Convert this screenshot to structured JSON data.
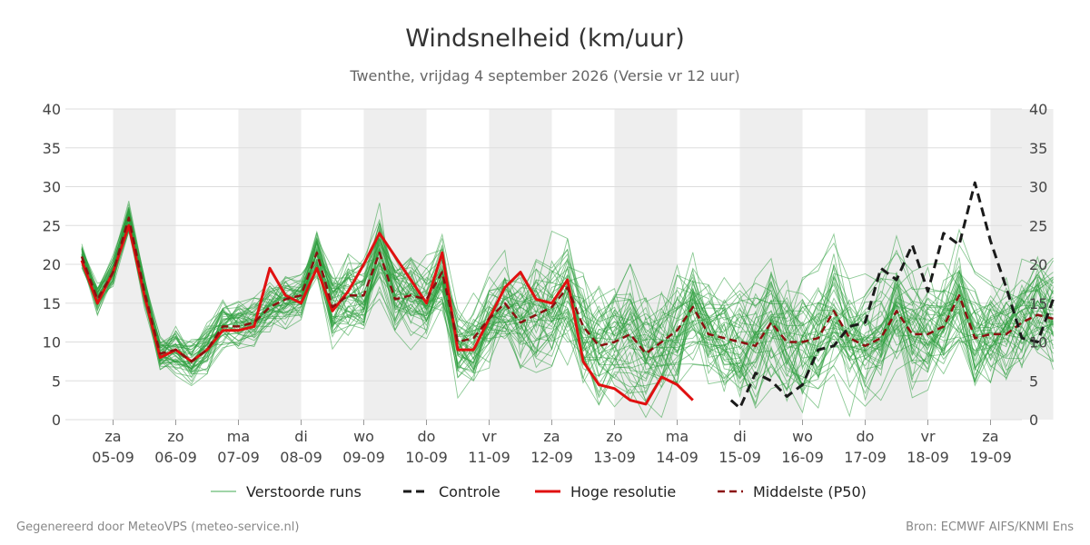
{
  "chart_data": {
    "type": "line",
    "title": "Windsnelheid (km/uur)",
    "subtitle": "Twenthe, vrijdag  4 september 2026 (Versie vr 12 uur)",
    "ylim": [
      0,
      40
    ],
    "yticks": [
      0,
      5,
      10,
      15,
      20,
      25,
      30,
      35,
      40
    ],
    "xlim": [
      0,
      15.5
    ],
    "grid": true,
    "legend_position": "bottom",
    "x_ticks": [
      {
        "x": 0.5,
        "day": "za",
        "date": "05-09"
      },
      {
        "x": 1.5,
        "day": "zo",
        "date": "06-09"
      },
      {
        "x": 2.5,
        "day": "ma",
        "date": "07-09"
      },
      {
        "x": 3.5,
        "day": "di",
        "date": "08-09"
      },
      {
        "x": 4.5,
        "day": "wo",
        "date": "09-09"
      },
      {
        "x": 5.5,
        "day": "do",
        "date": "10-09"
      },
      {
        "x": 6.5,
        "day": "vr",
        "date": "11-09"
      },
      {
        "x": 7.5,
        "day": "za",
        "date": "12-09"
      },
      {
        "x": 8.5,
        "day": "zo",
        "date": "13-09"
      },
      {
        "x": 9.5,
        "day": "ma",
        "date": "14-09"
      },
      {
        "x": 10.5,
        "day": "di",
        "date": "15-09"
      },
      {
        "x": 11.5,
        "day": "wo",
        "date": "16-09"
      },
      {
        "x": 12.5,
        "day": "do",
        "date": "17-09"
      },
      {
        "x": 13.5,
        "day": "vr",
        "date": "18-09"
      },
      {
        "x": 14.5,
        "day": "za",
        "date": "19-09"
      }
    ],
    "weekend_bands": [
      [
        0.5,
        1.5
      ],
      [
        2.5,
        3.5
      ],
      [
        4.5,
        5.5
      ],
      [
        6.5,
        7.5
      ],
      [
        8.5,
        9.5
      ],
      [
        10.5,
        11.5
      ],
      [
        12.5,
        13.5
      ],
      [
        14.5,
        15.5
      ]
    ],
    "colors": {
      "ensemble": "#2e9e3e",
      "control": "#1a1a1a",
      "high_res": "#e01010",
      "median": "#8b1010",
      "band": "#eeeeee",
      "grid": "#dddddd"
    },
    "ensemble_members": 50,
    "control": {
      "x": [
        10.36,
        10.5,
        10.75,
        11.0,
        11.25,
        11.5,
        11.75,
        12.0,
        12.25,
        12.5,
        12.75,
        13.0,
        13.25,
        13.5,
        13.75,
        14.0,
        14.25,
        14.5,
        14.75,
        15.0,
        15.25,
        15.5
      ],
      "values": [
        2.5,
        1.5,
        6.0,
        5.0,
        3.0,
        4.5,
        9.0,
        9.5,
        12.0,
        12.5,
        19.5,
        18.0,
        22.5,
        16.5,
        24.0,
        22.5,
        30.5,
        23.0,
        17.0,
        10.5,
        10.0,
        15.5
      ]
    },
    "high_res": {
      "x": [
        0.0,
        0.25,
        0.5,
        0.75,
        1.0,
        1.25,
        1.5,
        1.75,
        2.0,
        2.25,
        2.5,
        2.75,
        3.0,
        3.25,
        3.5,
        3.75,
        4.0,
        4.25,
        4.5,
        4.75,
        5.0,
        5.25,
        5.5,
        5.75,
        6.0,
        6.25,
        6.5,
        6.75,
        7.0,
        7.25,
        7.5,
        7.75,
        8.0,
        8.25,
        8.5,
        8.75,
        9.0,
        9.25,
        9.5,
        9.75,
        10.0,
        10.25
      ],
      "values": [
        20.5,
        15.0,
        19.0,
        25.0,
        16.0,
        8.0,
        9.0,
        7.5,
        9.0,
        11.5,
        11.5,
        12.0,
        19.5,
        16.0,
        15.0,
        19.5,
        14.0,
        16.5,
        20.0,
        24.0,
        21.0,
        18.0,
        15.0,
        21.5,
        9.0,
        9.0,
        13.0,
        17.0,
        19.0,
        15.5,
        15.0,
        18.0,
        7.5,
        4.5,
        4.0,
        2.5,
        2.0,
        5.5,
        4.5,
        2.5,
        null,
        null
      ]
    },
    "median": {
      "x": [
        0.0,
        0.25,
        0.5,
        0.75,
        1.0,
        1.25,
        1.5,
        1.75,
        2.0,
        2.25,
        2.5,
        2.75,
        3.0,
        3.25,
        3.5,
        3.75,
        4.0,
        4.25,
        4.5,
        4.75,
        5.0,
        5.25,
        5.5,
        5.75,
        6.0,
        6.25,
        6.5,
        6.75,
        7.0,
        7.25,
        7.5,
        7.75,
        8.0,
        8.25,
        8.5,
        8.75,
        9.0,
        9.25,
        9.5,
        9.75,
        10.0,
        10.25,
        10.5,
        10.75,
        11.0,
        11.25,
        11.5,
        11.75,
        12.0,
        12.25,
        12.5,
        12.75,
        13.0,
        13.25,
        13.5,
        13.75,
        14.0,
        14.25,
        14.5,
        14.75,
        15.0,
        15.25,
        15.5
      ],
      "values": [
        21.0,
        15.5,
        19.0,
        26.0,
        16.5,
        8.5,
        9.0,
        7.5,
        9.0,
        12.0,
        12.0,
        12.5,
        14.5,
        15.5,
        16.0,
        21.5,
        14.5,
        16.0,
        16.0,
        21.5,
        15.5,
        16.0,
        15.5,
        19.0,
        10.0,
        10.5,
        13.0,
        15.0,
        12.5,
        13.5,
        14.5,
        17.0,
        12.0,
        9.5,
        10.0,
        11.0,
        8.5,
        10.0,
        11.5,
        14.5,
        11.0,
        10.5,
        10.0,
        9.5,
        12.5,
        10.0,
        10.0,
        10.5,
        14.0,
        10.5,
        9.5,
        10.5,
        14.0,
        11.0,
        11.0,
        12.0,
        16.0,
        10.5,
        11.0,
        11.0,
        12.5,
        13.5,
        13.0
      ]
    },
    "legend": [
      {
        "label": "Verstoorde runs",
        "style": "ensemble"
      },
      {
        "label": "Controle",
        "style": "control"
      },
      {
        "label": "Hoge resolutie",
        "style": "high_res"
      },
      {
        "label": "Middelste (P50)",
        "style": "median"
      }
    ]
  },
  "footer": {
    "left": "Gegenereerd door MeteoVPS (meteo-service.nl)",
    "right": "Bron: ECMWF AIFS/KNMI Ens"
  }
}
